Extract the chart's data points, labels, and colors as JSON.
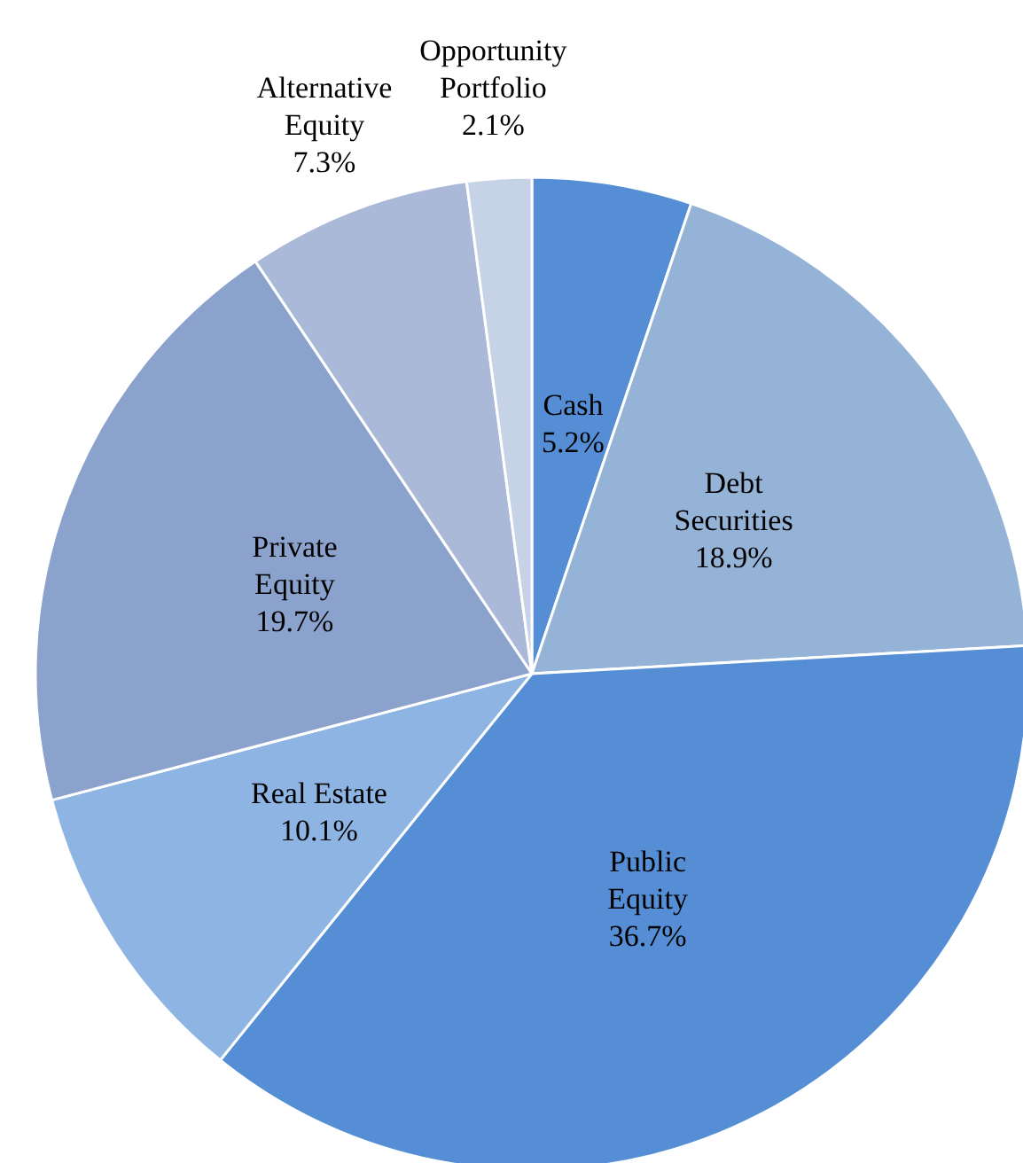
{
  "chart_data": {
    "type": "pie",
    "categories": [
      "Cash",
      "Debt\nSecurities",
      "Public\nEquity",
      "Real Estate",
      "Private\nEquity",
      "Alternative\nEquity",
      "Opportunity\nPortfolio"
    ],
    "values": [
      5.2,
      18.9,
      36.7,
      10.1,
      19.7,
      7.3,
      2.1
    ],
    "colors": [
      "#558ed5",
      "#95b3d7",
      "#558ed5",
      "#8db4e2",
      "#8aa2cc",
      "#aab9d8",
      "#c6d2e6"
    ],
    "value_labels": [
      "5.2%",
      "18.9%",
      "36.7%",
      "10.1%",
      "19.7%",
      "7.3%",
      "2.1%"
    ],
    "legend": false
  }
}
